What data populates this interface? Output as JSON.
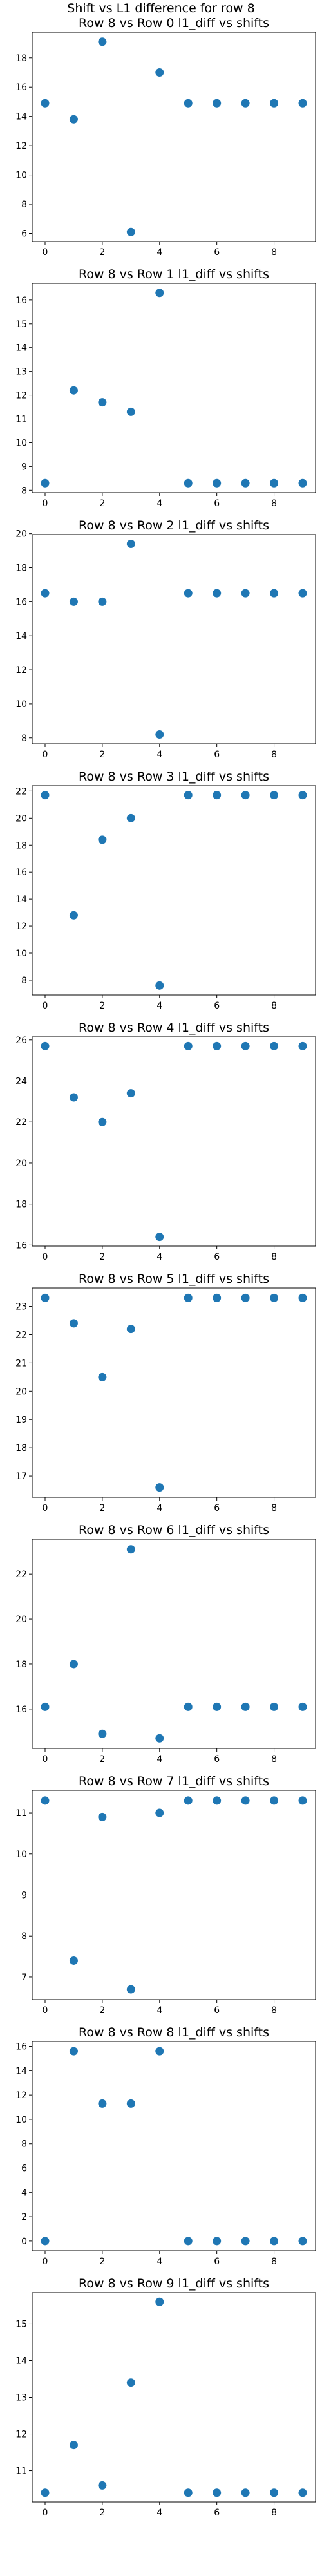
{
  "figure": {
    "title": "Shift vs L1 difference for row 8"
  },
  "chart_data": [
    {
      "type": "scatter",
      "title": "Row 8 vs Row 0 l1_diff vs shifts",
      "x": [
        0,
        1,
        2,
        3,
        4,
        5,
        6,
        7,
        8,
        9
      ],
      "y": [
        14.9,
        13.8,
        19.1,
        6.1,
        17.0,
        14.9,
        14.9,
        14.9,
        14.9,
        14.9
      ],
      "xticks": [
        0,
        2,
        4,
        6,
        8
      ],
      "yticks": [
        6,
        8,
        10,
        12,
        14,
        16,
        18
      ],
      "xlim": [
        -0.45,
        9.45
      ],
      "ylim": [
        5.45,
        19.75
      ],
      "color": "#1f77b4"
    },
    {
      "type": "scatter",
      "title": "Row 8 vs Row 1 l1_diff vs shifts",
      "x": [
        0,
        1,
        2,
        3,
        4,
        5,
        6,
        7,
        8,
        9
      ],
      "y": [
        8.3,
        12.2,
        11.7,
        11.3,
        16.3,
        8.3,
        8.3,
        8.3,
        8.3,
        8.3
      ],
      "xticks": [
        0,
        2,
        4,
        6,
        8
      ],
      "yticks": [
        8,
        9,
        10,
        11,
        12,
        13,
        14,
        15,
        16
      ],
      "xlim": [
        -0.45,
        9.45
      ],
      "ylim": [
        7.9,
        16.7
      ],
      "color": "#1f77b4"
    },
    {
      "type": "scatter",
      "title": "Row 8 vs Row 2 l1_diff vs shifts",
      "x": [
        0,
        1,
        2,
        3,
        4,
        5,
        6,
        7,
        8,
        9
      ],
      "y": [
        16.5,
        16.0,
        16.0,
        19.4,
        8.2,
        16.5,
        16.5,
        16.5,
        16.5,
        16.5
      ],
      "xticks": [
        0,
        2,
        4,
        6,
        8
      ],
      "yticks": [
        8,
        10,
        12,
        14,
        16,
        18,
        20
      ],
      "xlim": [
        -0.45,
        9.45
      ],
      "ylim": [
        7.65,
        19.95
      ],
      "color": "#1f77b4"
    },
    {
      "type": "scatter",
      "title": "Row 8 vs Row 3 l1_diff vs shifts",
      "x": [
        0,
        1,
        2,
        3,
        4,
        5,
        6,
        7,
        8,
        9
      ],
      "y": [
        21.7,
        12.8,
        18.4,
        20.0,
        7.6,
        21.7,
        21.7,
        21.7,
        21.7,
        21.7
      ],
      "xticks": [
        0,
        2,
        4,
        6,
        8
      ],
      "yticks": [
        8,
        10,
        12,
        14,
        16,
        18,
        20,
        22
      ],
      "xlim": [
        -0.45,
        9.45
      ],
      "ylim": [
        6.9,
        22.4
      ],
      "color": "#1f77b4"
    },
    {
      "type": "scatter",
      "title": "Row 8 vs Row 4 l1_diff vs shifts",
      "x": [
        0,
        1,
        2,
        3,
        4,
        5,
        6,
        7,
        8,
        9
      ],
      "y": [
        25.7,
        23.2,
        22.0,
        23.4,
        16.4,
        25.7,
        25.7,
        25.7,
        25.7,
        25.7
      ],
      "xticks": [
        0,
        2,
        4,
        6,
        8
      ],
      "yticks": [
        16,
        18,
        20,
        22,
        24,
        26
      ],
      "xlim": [
        -0.45,
        9.45
      ],
      "ylim": [
        15.95,
        26.15
      ],
      "color": "#1f77b4"
    },
    {
      "type": "scatter",
      "title": "Row 8 vs Row 5 l1_diff vs shifts",
      "x": [
        0,
        1,
        2,
        3,
        4,
        5,
        6,
        7,
        8,
        9
      ],
      "y": [
        23.3,
        22.4,
        20.5,
        22.2,
        16.6,
        23.3,
        23.3,
        23.3,
        23.3,
        23.3
      ],
      "xticks": [
        0,
        2,
        4,
        6,
        8
      ],
      "yticks": [
        17,
        18,
        19,
        20,
        21,
        22,
        23
      ],
      "xlim": [
        -0.45,
        9.45
      ],
      "ylim": [
        16.25,
        23.65
      ],
      "color": "#1f77b4"
    },
    {
      "type": "scatter",
      "title": "Row 8 vs Row 6 l1_diff vs shifts",
      "x": [
        0,
        1,
        2,
        3,
        4,
        5,
        6,
        7,
        8,
        9
      ],
      "y": [
        16.1,
        18.0,
        14.9,
        23.1,
        14.7,
        16.1,
        16.1,
        16.1,
        16.1,
        16.1
      ],
      "xticks": [
        0,
        2,
        4,
        6,
        8
      ],
      "yticks": [
        16,
        18,
        20,
        22
      ],
      "xlim": [
        -0.45,
        9.45
      ],
      "ylim": [
        14.25,
        23.55
      ],
      "color": "#1f77b4"
    },
    {
      "type": "scatter",
      "title": "Row 8 vs Row 7 l1_diff vs shifts",
      "x": [
        0,
        1,
        2,
        3,
        4,
        5,
        6,
        7,
        8,
        9
      ],
      "y": [
        11.3,
        7.4,
        10.9,
        6.7,
        11.0,
        11.3,
        11.3,
        11.3,
        11.3,
        11.3
      ],
      "xticks": [
        0,
        2,
        4,
        6,
        8
      ],
      "yticks": [
        7,
        8,
        9,
        10,
        11
      ],
      "xlim": [
        -0.45,
        9.45
      ],
      "ylim": [
        6.45,
        11.55
      ],
      "color": "#1f77b4"
    },
    {
      "type": "scatter",
      "title": "Row 8 vs Row 8 l1_diff vs shifts",
      "x": [
        0,
        1,
        2,
        3,
        4,
        5,
        6,
        7,
        8,
        9
      ],
      "y": [
        0.0,
        15.6,
        11.3,
        11.3,
        15.6,
        0.0,
        0.0,
        0.0,
        0.0,
        0.0
      ],
      "xticks": [
        0,
        2,
        4,
        6,
        8
      ],
      "yticks": [
        0,
        2,
        4,
        6,
        8,
        10,
        12,
        14,
        16
      ],
      "xlim": [
        -0.45,
        9.45
      ],
      "ylim": [
        -0.8,
        16.4
      ],
      "color": "#1f77b4"
    },
    {
      "type": "scatter",
      "title": "Row 8 vs Row 9 l1_diff vs shifts",
      "x": [
        0,
        1,
        2,
        3,
        4,
        5,
        6,
        7,
        8,
        9
      ],
      "y": [
        10.4,
        11.7,
        10.6,
        13.4,
        15.6,
        10.4,
        10.4,
        10.4,
        10.4,
        10.4
      ],
      "xticks": [
        0,
        2,
        4,
        6,
        8
      ],
      "yticks": [
        11,
        12,
        13,
        14,
        15
      ],
      "xlim": [
        -0.45,
        9.45
      ],
      "ylim": [
        10.15,
        15.85
      ],
      "color": "#1f77b4"
    }
  ]
}
